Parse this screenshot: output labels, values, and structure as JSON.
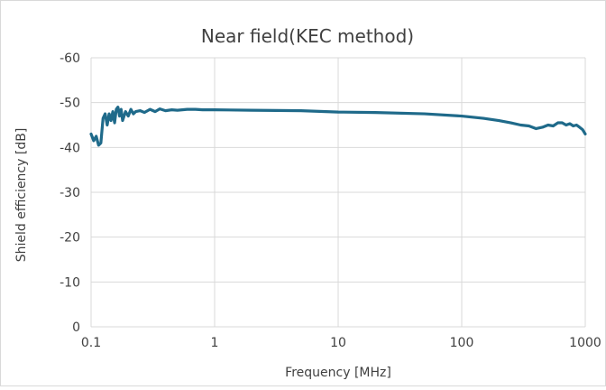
{
  "chart_data": {
    "type": "line",
    "title": "Near field(KEC method)",
    "xlabel": "Frequency [MHz]",
    "ylabel": "Shield efficiency [dB]",
    "x_scale": "log",
    "xlim": [
      0.1,
      1000
    ],
    "ylim": [
      -60,
      0
    ],
    "y_inverted": true,
    "grid": true,
    "legend": "none",
    "x_ticks": [
      "0.1",
      "1",
      "10",
      "100",
      "1000"
    ],
    "y_ticks": [
      "-60",
      "-50",
      "-40",
      "-30",
      "-20",
      "-10",
      "0"
    ],
    "series": [
      {
        "color": "#1f6a8a",
        "x": [
          0.1,
          0.105,
          0.11,
          0.115,
          0.12,
          0.125,
          0.13,
          0.135,
          0.14,
          0.145,
          0.15,
          0.155,
          0.16,
          0.165,
          0.17,
          0.175,
          0.18,
          0.19,
          0.2,
          0.21,
          0.22,
          0.23,
          0.25,
          0.27,
          0.3,
          0.33,
          0.36,
          0.4,
          0.45,
          0.5,
          0.6,
          0.7,
          0.8,
          1,
          2,
          5,
          10,
          20,
          50,
          100,
          150,
          200,
          250,
          300,
          350,
          400,
          450,
          500,
          550,
          600,
          650,
          700,
          750,
          800,
          850,
          900,
          950,
          1000
        ],
        "y": [
          -43,
          -41.5,
          -42.5,
          -40.5,
          -41,
          -46.5,
          -47.5,
          -45,
          -47.5,
          -46,
          -48,
          -45.5,
          -48.5,
          -49,
          -47,
          -48.5,
          -46,
          -48,
          -47,
          -48.5,
          -47.5,
          -48,
          -48.2,
          -47.8,
          -48.5,
          -48,
          -48.6,
          -48.2,
          -48.4,
          -48.3,
          -48.5,
          -48.5,
          -48.4,
          -48.4,
          -48.3,
          -48.2,
          -47.9,
          -47.8,
          -47.5,
          -47,
          -46.5,
          -46,
          -45.5,
          -45,
          -44.8,
          -44.2,
          -44.5,
          -45,
          -44.8,
          -45.5,
          -45.5,
          -45,
          -45.3,
          -44.8,
          -45,
          -44.5,
          -44,
          -43
        ]
      }
    ]
  }
}
